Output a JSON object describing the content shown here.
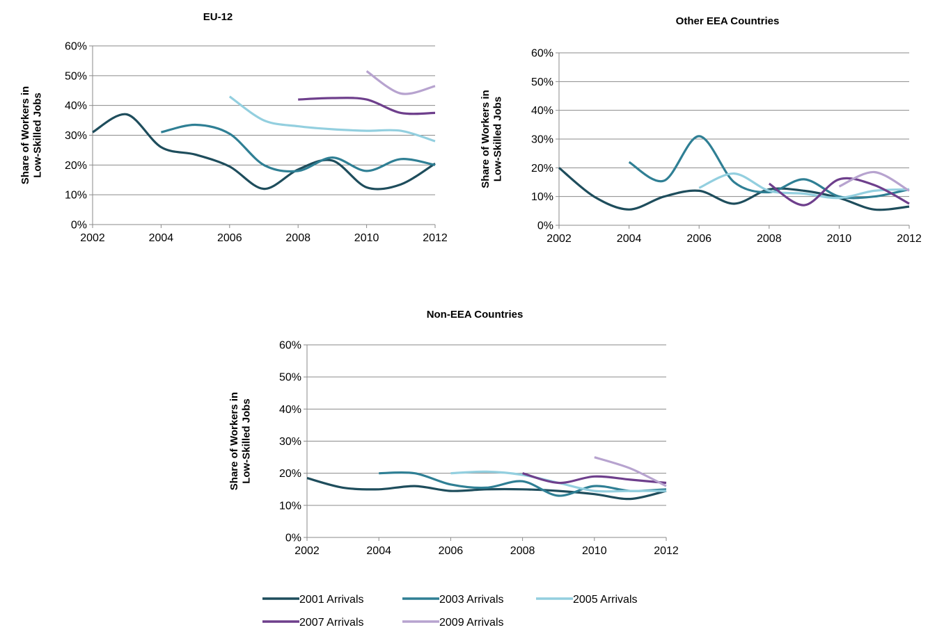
{
  "legend": [
    {
      "name": "2001 Arrivals",
      "color": "#1e4d5c"
    },
    {
      "name": "2003 Arrivals",
      "color": "#2f7f94"
    },
    {
      "name": "2005 Arrivals",
      "color": "#93cfdf"
    },
    {
      "name": "2007 Arrivals",
      "color": "#6e3f8c"
    },
    {
      "name": "2009 Arrivals",
      "color": "#b7a3cf"
    }
  ],
  "chart_data": [
    {
      "type": "line",
      "title": "EU-12",
      "ylabel": [
        "Share of Workers in",
        "Low-Skilled Jobs"
      ],
      "xlim": [
        2002,
        2012
      ],
      "ylim": [
        0,
        60
      ],
      "x_ticks": [
        "2002",
        "2004",
        "2006",
        "2008",
        "2010",
        "2012"
      ],
      "y_ticks": [
        "0%",
        "10%",
        "20%",
        "30%",
        "40%",
        "50%",
        "60%"
      ],
      "grid": true,
      "series": [
        {
          "name": "2001 Arrivals",
          "x": [
            2002,
            2003,
            2004,
            2005,
            2006,
            2007,
            2008,
            2009,
            2010,
            2011,
            2012
          ],
          "values": [
            31,
            37,
            26,
            23.5,
            19.5,
            12,
            18.5,
            21.5,
            12.5,
            13.5,
            20.5
          ]
        },
        {
          "name": "2003 Arrivals",
          "x": [
            2004,
            2005,
            2006,
            2007,
            2008,
            2009,
            2010,
            2011,
            2012
          ],
          "values": [
            31,
            33.5,
            30.5,
            20,
            18,
            22.5,
            18,
            22,
            20
          ]
        },
        {
          "name": "2005 Arrivals",
          "x": [
            2006,
            2007,
            2008,
            2009,
            2010,
            2011,
            2012
          ],
          "values": [
            43,
            35,
            33,
            32,
            31.5,
            31.5,
            28
          ]
        },
        {
          "name": "2007 Arrivals",
          "x": [
            2008,
            2009,
            2010,
            2011,
            2012
          ],
          "values": [
            42,
            42.5,
            42,
            37.5,
            37.5
          ]
        },
        {
          "name": "2009 Arrivals",
          "x": [
            2010,
            2011,
            2012
          ],
          "values": [
            51.5,
            44,
            46.5
          ]
        }
      ]
    },
    {
      "type": "line",
      "title": "Other EEA Countries",
      "ylabel": [
        "Share of Workers in",
        "Low-Skilled Jobs"
      ],
      "xlim": [
        2002,
        2012
      ],
      "ylim": [
        0,
        60
      ],
      "x_ticks": [
        "2002",
        "2004",
        "2006",
        "2008",
        "2010",
        "2012"
      ],
      "y_ticks": [
        "0%",
        "10%",
        "20%",
        "30%",
        "40%",
        "50%",
        "60%"
      ],
      "grid": true,
      "series": [
        {
          "name": "2001 Arrivals",
          "x": [
            2002,
            2003,
            2004,
            2005,
            2006,
            2007,
            2008,
            2009,
            2010,
            2011,
            2012
          ],
          "values": [
            20,
            10,
            5.5,
            10,
            12,
            7.5,
            12.5,
            12,
            9.5,
            5.5,
            6.5
          ]
        },
        {
          "name": "2003 Arrivals",
          "x": [
            2004,
            2005,
            2006,
            2007,
            2008,
            2009,
            2010,
            2011,
            2012
          ],
          "values": [
            22,
            15.5,
            31,
            15,
            11.5,
            16,
            10,
            10,
            12.5
          ]
        },
        {
          "name": "2005 Arrivals",
          "x": [
            2006,
            2007,
            2008,
            2009,
            2010,
            2011,
            2012
          ],
          "values": [
            13,
            18,
            12,
            11,
            9.5,
            12,
            12.5
          ]
        },
        {
          "name": "2007 Arrivals",
          "x": [
            2008,
            2009,
            2010,
            2011,
            2012
          ],
          "values": [
            14.5,
            7,
            16,
            14,
            7.5
          ]
        },
        {
          "name": "2009 Arrivals",
          "x": [
            2010,
            2011,
            2012
          ],
          "values": [
            13.5,
            18.5,
            12
          ]
        }
      ]
    },
    {
      "type": "line",
      "title": "Non-EEA Countries",
      "ylabel": [
        "Share of Workers in",
        "Low-Skilled Jobs"
      ],
      "xlim": [
        2002,
        2012
      ],
      "ylim": [
        0,
        60
      ],
      "x_ticks": [
        "2002",
        "2004",
        "2006",
        "2008",
        "2010",
        "2012"
      ],
      "y_ticks": [
        "0%",
        "10%",
        "20%",
        "30%",
        "40%",
        "50%",
        "60%"
      ],
      "grid": true,
      "series": [
        {
          "name": "2001 Arrivals",
          "x": [
            2002,
            2003,
            2004,
            2005,
            2006,
            2007,
            2008,
            2009,
            2010,
            2011,
            2012
          ],
          "values": [
            18.5,
            15.5,
            15,
            16,
            14.5,
            15,
            15,
            14.5,
            13.5,
            12,
            14.5
          ]
        },
        {
          "name": "2003 Arrivals",
          "x": [
            2004,
            2005,
            2006,
            2007,
            2008,
            2009,
            2010,
            2011,
            2012
          ],
          "values": [
            20,
            20,
            16.5,
            15.5,
            17.5,
            13,
            16,
            14.5,
            15
          ]
        },
        {
          "name": "2005 Arrivals",
          "x": [
            2006,
            2007,
            2008,
            2009,
            2010,
            2011,
            2012
          ],
          "values": [
            20,
            20.5,
            19.5,
            17,
            14.5,
            14.5,
            14.5
          ]
        },
        {
          "name": "2007 Arrivals",
          "x": [
            2008,
            2009,
            2010,
            2011,
            2012
          ],
          "values": [
            20,
            17,
            19,
            18,
            17
          ]
        },
        {
          "name": "2009 Arrivals",
          "x": [
            2010,
            2011,
            2012
          ],
          "values": [
            25,
            21.5,
            16
          ]
        }
      ]
    }
  ]
}
